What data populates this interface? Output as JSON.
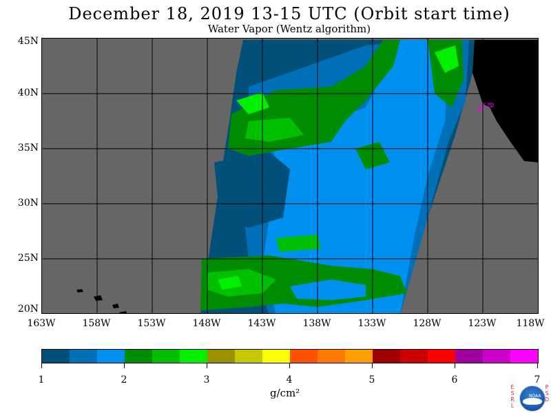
{
  "title": "December 18, 2019  13-15 UTC  (Orbit start time)",
  "subtitle": "Water Vapor (Wentz algorithm)",
  "lat_labels": [
    "45N",
    "40N",
    "35N",
    "30N",
    "25N",
    "20N"
  ],
  "lon_labels": [
    "163W",
    "158W",
    "153W",
    "148W",
    "143W",
    "138W",
    "133W",
    "128W",
    "123W",
    "118W"
  ],
  "station_label": "CZD",
  "colorbar": {
    "colors": [
      "#00507a",
      "#0070b8",
      "#0090f0",
      "#008c00",
      "#00c000",
      "#00f000",
      "#9a9000",
      "#c8c800",
      "#ffff00",
      "#ff5000",
      "#ff7800",
      "#ffa000",
      "#a00000",
      "#cc0000",
      "#ff0000",
      "#a000a0",
      "#cc00cc",
      "#ff00ff"
    ],
    "ticks": [
      "1",
      "2",
      "3",
      "4",
      "5",
      "6",
      "7"
    ],
    "unit": "g/cm²"
  },
  "logo": {
    "left_letters": [
      "E",
      "S",
      "R",
      "L"
    ],
    "right_letters": [
      "P",
      "S",
      "D"
    ],
    "text": "NOAA"
  }
}
